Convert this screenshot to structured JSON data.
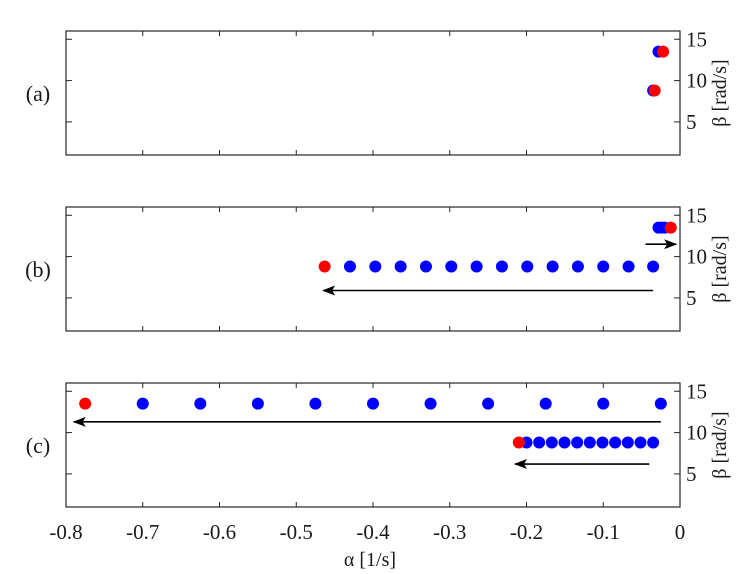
{
  "chart_data": {
    "type": "scatter",
    "xlabel": "α [1/s]",
    "xlim": [
      -0.8,
      0
    ],
    "xticks": [
      -0.8,
      -0.7,
      -0.6,
      -0.5,
      -0.4,
      -0.3,
      -0.2,
      -0.1,
      0
    ],
    "xtick_labels": [
      "-0.8",
      "-0.7",
      "-0.6",
      "-0.5",
      "-0.4",
      "-0.3",
      "-0.2",
      "-0.1",
      "0"
    ],
    "colors": {
      "blue": "#0000ff",
      "red": "#ff0000"
    },
    "panels": [
      {
        "label": "(a)",
        "ylabel": "β [rad/s]",
        "ylim": [
          1,
          16
        ],
        "yticks": [
          5,
          10,
          15
        ],
        "series": [
          {
            "color": "blue",
            "points": [
              [
                -0.035,
                8.8
              ],
              [
                -0.028,
                13.5
              ]
            ]
          },
          {
            "color": "red",
            "points": [
              [
                -0.033,
                8.8
              ],
              [
                -0.022,
                13.5
              ]
            ]
          }
        ],
        "arrows": []
      },
      {
        "label": "(b)",
        "ylabel": "β [rad/s]",
        "ylim": [
          1,
          16
        ],
        "yticks": [
          5,
          10,
          15
        ],
        "series": [
          {
            "color": "blue",
            "points": [
              [
                -0.035,
                8.8
              ],
              [
                -0.067,
                8.8
              ],
              [
                -0.1,
                8.8
              ],
              [
                -0.133,
                8.8
              ],
              [
                -0.166,
                8.8
              ],
              [
                -0.199,
                8.8
              ],
              [
                -0.232,
                8.8
              ],
              [
                -0.265,
                8.8
              ],
              [
                -0.298,
                8.8
              ],
              [
                -0.331,
                8.8
              ],
              [
                -0.364,
                8.8
              ],
              [
                -0.397,
                8.8
              ],
              [
                -0.43,
                8.8
              ],
              [
                -0.028,
                13.5
              ],
              [
                -0.024,
                13.5
              ],
              [
                -0.02,
                13.5
              ]
            ]
          },
          {
            "color": "red",
            "points": [
              [
                -0.463,
                8.8
              ],
              [
                -0.012,
                13.5
              ]
            ]
          }
        ],
        "arrows": [
          {
            "from": [
              -0.035,
              5.9
            ],
            "to": [
              -0.465,
              5.9
            ]
          },
          {
            "from": [
              -0.045,
              11.5
            ],
            "to": [
              -0.005,
              11.5
            ]
          }
        ]
      },
      {
        "label": "(c)",
        "ylabel": "β [rad/s]",
        "ylim": [
          1,
          16
        ],
        "yticks": [
          5,
          10,
          15
        ],
        "series": [
          {
            "color": "blue",
            "points": [
              [
                -0.025,
                13.5
              ],
              [
                -0.1,
                13.5
              ],
              [
                -0.175,
                13.5
              ],
              [
                -0.25,
                13.5
              ],
              [
                -0.325,
                13.5
              ],
              [
                -0.4,
                13.5
              ],
              [
                -0.475,
                13.5
              ],
              [
                -0.55,
                13.5
              ],
              [
                -0.625,
                13.5
              ],
              [
                -0.7,
                13.5
              ],
              [
                -0.035,
                8.8
              ],
              [
                -0.0515,
                8.8
              ],
              [
                -0.068,
                8.8
              ],
              [
                -0.0845,
                8.8
              ],
              [
                -0.101,
                8.8
              ],
              [
                -0.1175,
                8.8
              ],
              [
                -0.134,
                8.8
              ],
              [
                -0.1505,
                8.8
              ],
              [
                -0.167,
                8.8
              ],
              [
                -0.1835,
                8.8
              ],
              [
                -0.2,
                8.8
              ]
            ]
          },
          {
            "color": "red",
            "points": [
              [
                -0.775,
                13.5
              ],
              [
                -0.21,
                8.8
              ]
            ]
          }
        ],
        "arrows": [
          {
            "from": [
              -0.025,
              11.3
            ],
            "to": [
              -0.79,
              11.3
            ]
          },
          {
            "from": [
              -0.04,
              6.2
            ],
            "to": [
              -0.215,
              6.2
            ]
          }
        ]
      }
    ]
  }
}
